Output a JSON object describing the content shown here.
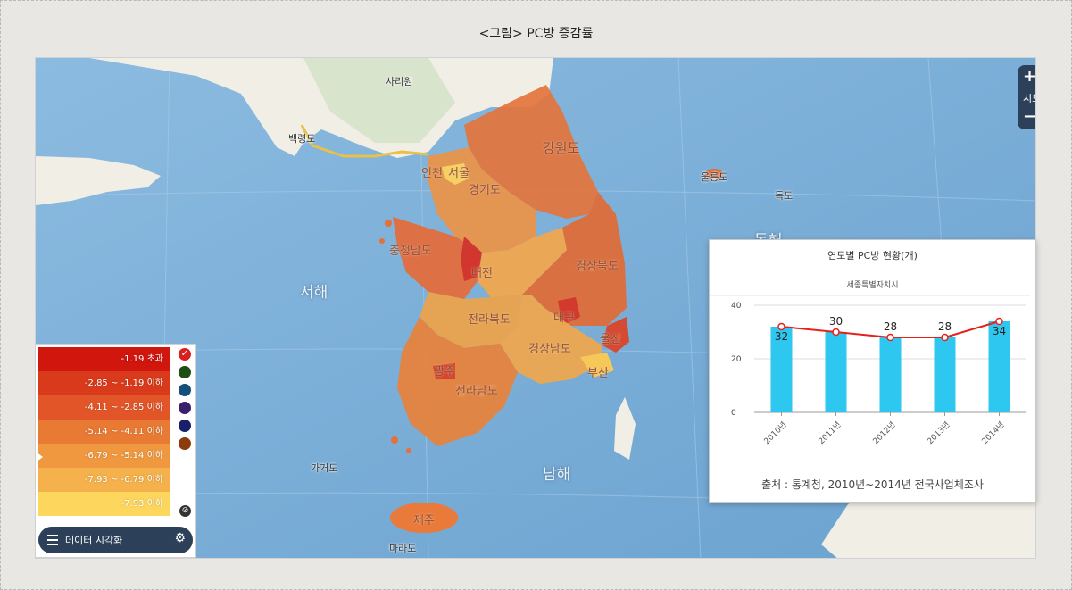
{
  "figure": {
    "title": "<그림> PC방 증감률"
  },
  "zoom": {
    "plus": "+",
    "label": "시도",
    "minus": "−"
  },
  "map_labels": {
    "north_korea": "사리원",
    "baengnyeong": "백령도",
    "seoul": "서울",
    "incheon": "인천",
    "gyeonggi": "경기도",
    "gangwon": "강원도",
    "ulleung": "울릉도",
    "dokdo": "독도",
    "east_sea": "동해",
    "west_sea": "서해",
    "chungnam": "충청남도",
    "daejeon": "대전",
    "gyeongbuk": "경상북도",
    "daegu": "대구",
    "ulsan": "울산",
    "jeonbuk": "전라북도",
    "gyeongnam": "경상남도",
    "busan": "부산",
    "gwangju": "광주",
    "jeonnam": "전라남도",
    "gageodo": "가거도",
    "south_sea": "남해",
    "jeju": "제주",
    "marado": "마라도"
  },
  "legend": {
    "rows": [
      {
        "label": "-1.19 초과",
        "color": "#d1160e"
      },
      {
        "label": "-2.85 ~ -1.19 이하",
        "color": "#d93a1b"
      },
      {
        "label": "-4.11 ~ -2.85 이하",
        "color": "#e25528"
      },
      {
        "label": "-5.14 ~ -4.11 이하",
        "color": "#e87a34"
      },
      {
        "label": "-6.79 ~ -5.14 이하",
        "color": "#ef983f"
      },
      {
        "label": "-7.93 ~ -6.79 이하",
        "color": "#f5b14b"
      },
      {
        "label": "-7.93 이하",
        "color": "#fdd65d"
      }
    ],
    "swatches": [
      "#d92020",
      "#1f4e14",
      "#144f7a",
      "#3a1f6e",
      "#1a1f6b",
      "#8b3b0c"
    ],
    "check_icon": "✓",
    "reset_icon": "⊘"
  },
  "viz_button": {
    "label": "데이터 시각화",
    "gear": "⚙"
  },
  "chart_data": {
    "type": "bar",
    "title": "연도별 PC방 현황(개)",
    "subtitle": "세종특별자치시",
    "categories": [
      "2010년",
      "2011년",
      "2012년",
      "2013년",
      "2014년"
    ],
    "series": [
      {
        "values": [
          32,
          30,
          28,
          28,
          34
        ],
        "color": "#2ec7ef",
        "kind": "bar"
      },
      {
        "values": [
          32,
          30,
          28,
          28,
          34
        ],
        "color": "#e8201a",
        "kind": "line"
      }
    ],
    "y_ticks": [
      0,
      20,
      40
    ],
    "ylim": [
      0,
      40
    ],
    "grid": true,
    "source": "출처 : 통계청, 2010년~2014년 전국사업체조사"
  }
}
